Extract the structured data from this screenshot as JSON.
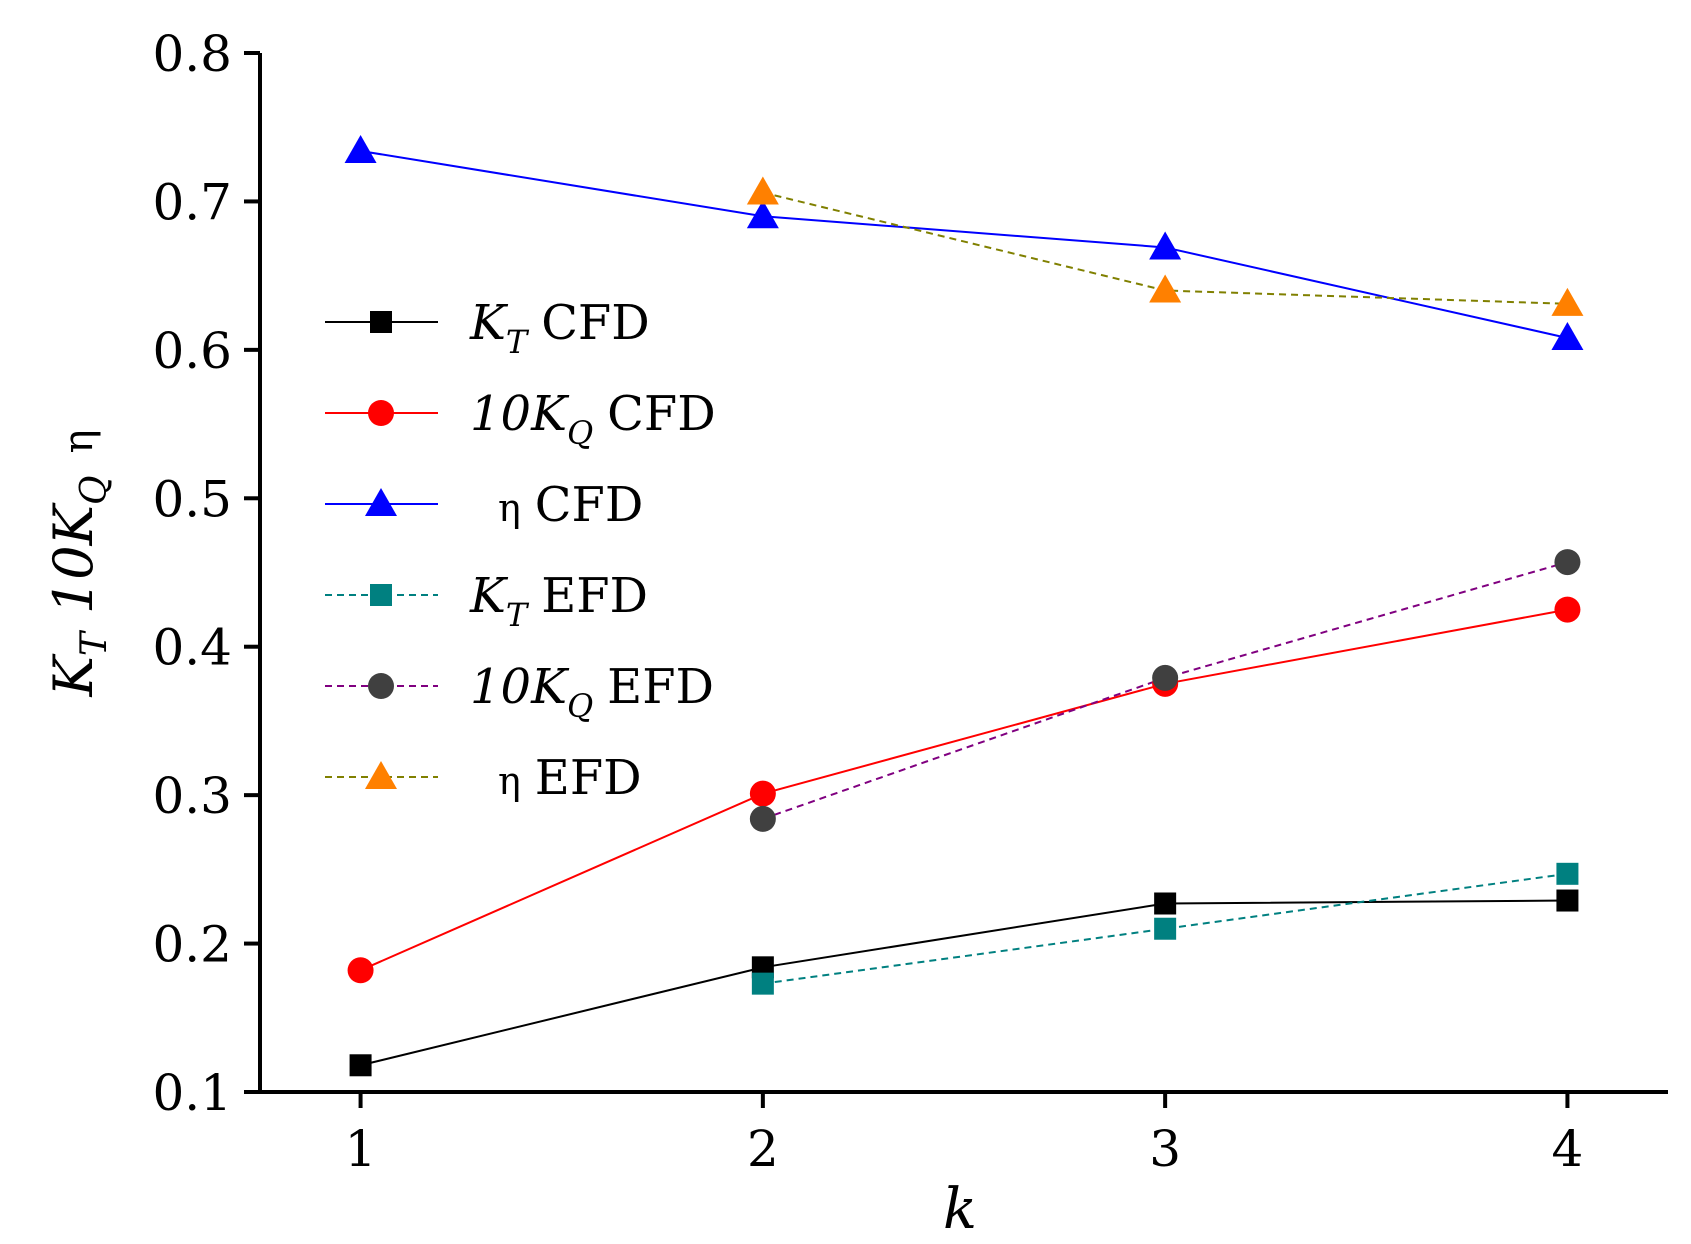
{
  "chart_data": {
    "type": "line",
    "title": "",
    "xlabel": "k",
    "ylabel": {
      "k": "K",
      "k_sub": "T",
      "tq": "10K",
      "tq_sub": "Q",
      "eta": "η"
    },
    "x": [
      1,
      2,
      3,
      4
    ],
    "xticks": [
      "1",
      "2",
      "3",
      "4"
    ],
    "xlim": [
      0.75,
      4.25
    ],
    "ylim": [
      0.1,
      0.8
    ],
    "yticks": [
      "0.1",
      "0.2",
      "0.3",
      "0.4",
      "0.5",
      "0.6",
      "0.7",
      "0.8"
    ],
    "grid": false,
    "legend_position": "left-middle",
    "series": [
      {
        "name": "K_T CFD",
        "label_main": "K",
        "label_sub": "T",
        "label_rest": "CFD",
        "label_style": "italic-sub",
        "x": [
          1,
          2,
          3,
          4
        ],
        "values": [
          0.118,
          0.184,
          0.227,
          0.229
        ],
        "color": "#000000",
        "marker_color": "#000000",
        "marker": "square",
        "dash": "solid"
      },
      {
        "name": "10K_Q CFD",
        "label_main": "10K",
        "label_sub": "Q",
        "label_rest": "CFD",
        "label_style": "italic-sub",
        "x": [
          1,
          2,
          3,
          4
        ],
        "values": [
          0.182,
          0.301,
          0.375,
          0.425
        ],
        "color": "#ff0000",
        "marker_color": "#ff0000",
        "marker": "circle",
        "dash": "solid"
      },
      {
        "name": "η CFD",
        "label_main": "η",
        "label_sub": "",
        "label_rest": "CFD",
        "label_style": "plain",
        "x": [
          1,
          2,
          3,
          4
        ],
        "values": [
          0.734,
          0.69,
          0.669,
          0.608
        ],
        "color": "#0000ff",
        "marker_color": "#0000ff",
        "marker": "triangle",
        "dash": "solid"
      },
      {
        "name": "K_T EFD",
        "label_main": "K",
        "label_sub": "T",
        "label_rest": "EFD",
        "label_style": "italic-sub",
        "x": [
          2,
          3,
          4
        ],
        "values": [
          0.173,
          0.21,
          0.247
        ],
        "color": "#008080",
        "marker_color": "#008080",
        "marker": "square",
        "dash": "dashed"
      },
      {
        "name": "10K_Q EFD",
        "label_main": "10K",
        "label_sub": "Q",
        "label_rest": "EFD",
        "label_style": "italic-sub",
        "x": [
          2,
          3,
          4
        ],
        "values": [
          0.284,
          0.379,
          0.457
        ],
        "color": "#800080",
        "marker_color": "#404040",
        "marker": "circle",
        "dash": "dashed"
      },
      {
        "name": "η EFD",
        "label_main": "η",
        "label_sub": "",
        "label_rest": "EFD",
        "label_style": "plain",
        "x": [
          2,
          3,
          4
        ],
        "values": [
          0.706,
          0.64,
          0.631
        ],
        "color": "#808000",
        "marker_color": "#ff8000",
        "marker": "triangle",
        "dash": "dashed"
      }
    ]
  }
}
